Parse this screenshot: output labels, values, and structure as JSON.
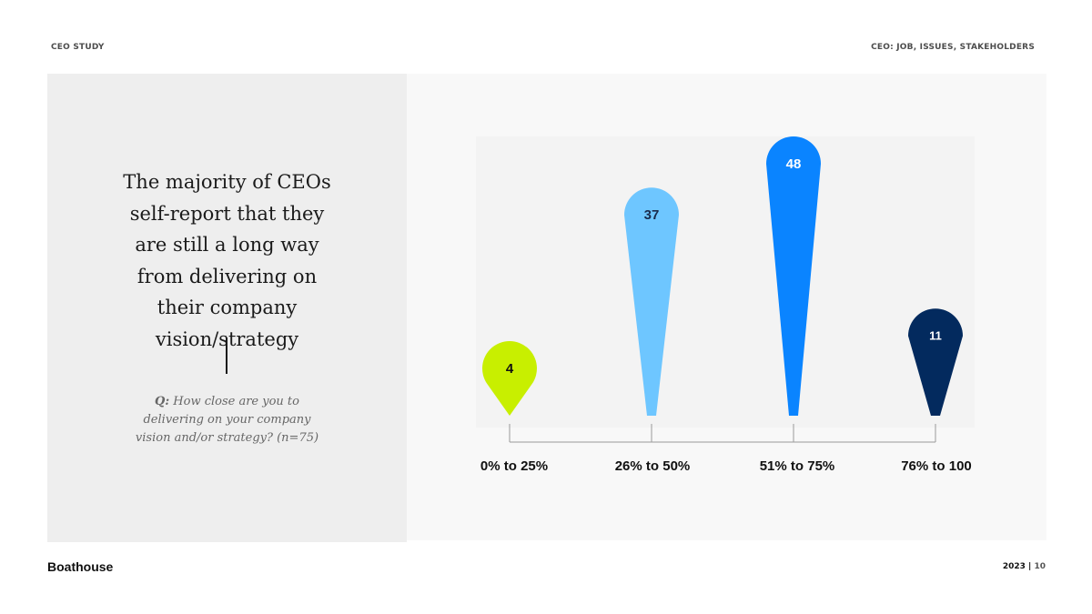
{
  "header": {
    "left": "CEO STUDY",
    "right": "CEO: JOB, ISSUES, STAKEHOLDERS"
  },
  "left_panel": {
    "headline": "The majority of CEOs self-report that they are still a long way from delivering on their company vision/strategy",
    "question_prefix": "Q:",
    "question": "How close are you to delivering on your company vision and/or strategy? (n=75)"
  },
  "chart_data": {
    "type": "bar",
    "categories": [
      "0% to 25%",
      "26% to 50%",
      "51% to 75%",
      "76% to 100"
    ],
    "values": [
      4,
      37,
      48,
      11
    ],
    "colors": [
      "#c8ef00",
      "#6ec6ff",
      "#0a84ff",
      "#032a5e"
    ],
    "label_colors": [
      "#111111",
      "#1a2b4c",
      "#ffffff",
      "#ffffff"
    ],
    "title": "",
    "xlabel": "",
    "ylabel": "",
    "ylim": [
      0,
      48
    ],
    "grid": false,
    "legend": "none"
  },
  "footer": {
    "brand": "Boathouse",
    "year": "2023",
    "separator": "|",
    "page": "10"
  }
}
